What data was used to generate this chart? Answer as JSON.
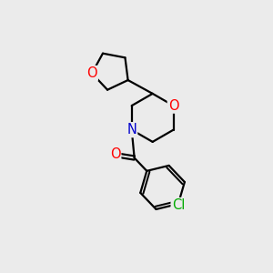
{
  "background_color": "#ebebeb",
  "bond_color": "#000000",
  "atom_colors": {
    "O": "#ff0000",
    "N": "#0000cd",
    "Cl": "#00aa00",
    "C": "#000000"
  },
  "line_width": 1.6,
  "font_size": 10.5,
  "fig_width": 3.0,
  "fig_height": 3.0,
  "dpi": 100
}
